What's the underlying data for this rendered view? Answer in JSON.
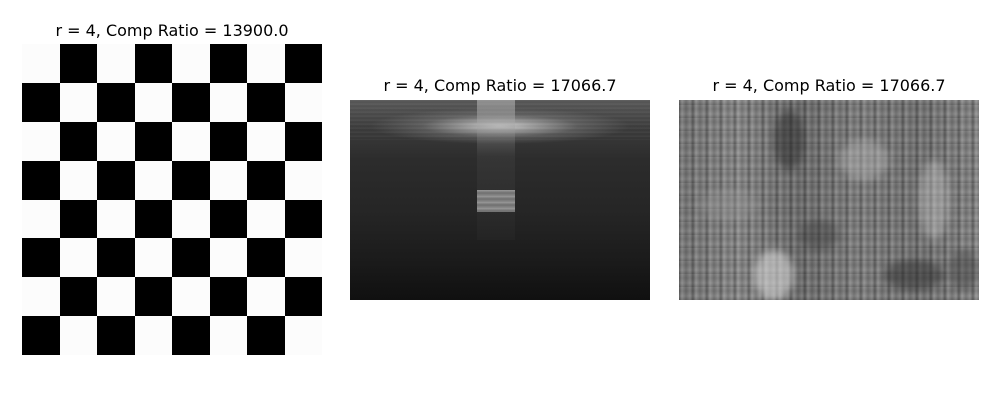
{
  "panels": [
    {
      "title": "r = 4, Comp Ratio = 13900.0",
      "image": "checkerboard-reconstruction"
    },
    {
      "title": "r = 4, Comp Ratio = 17066.7",
      "image": "dark-scene-reconstruction"
    },
    {
      "title": "r = 4, Comp Ratio = 17066.7",
      "image": "noisy-texture-reconstruction"
    }
  ]
}
